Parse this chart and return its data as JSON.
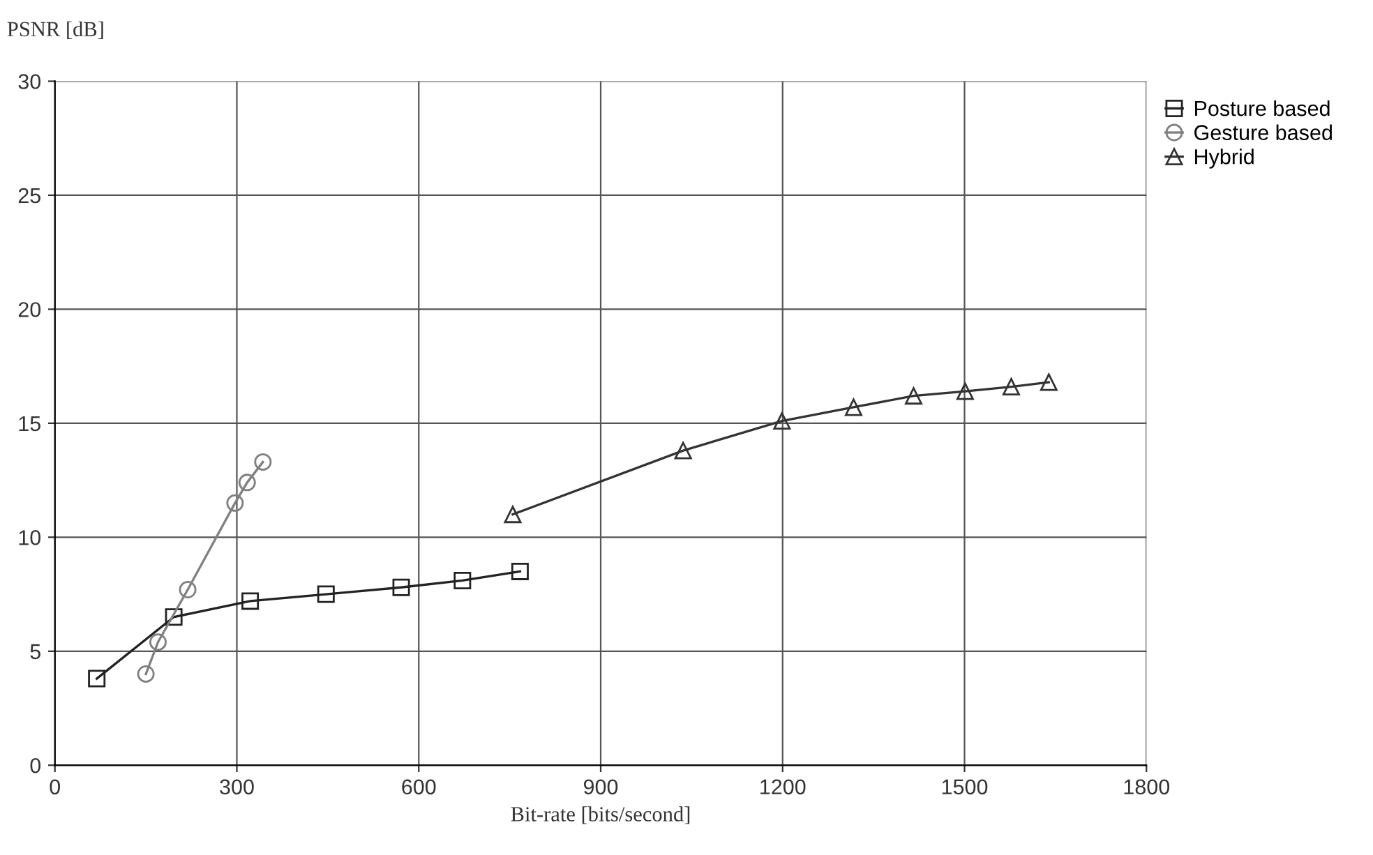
{
  "chart_data": {
    "type": "line",
    "xlabel": "Bit-rate [bits/second]",
    "ylabel": "PSNR [dB]",
    "xlim": [
      0,
      1800
    ],
    "xticks": [
      0,
      300,
      600,
      900,
      1200,
      1500,
      1800
    ],
    "ylim": [
      0,
      30
    ],
    "yticks": [
      0,
      5,
      10,
      15,
      20,
      25,
      30
    ],
    "grid": true,
    "legend": "top right",
    "line_style": "solid",
    "series": [
      {
        "name": "Posture based",
        "color": "#222222",
        "marker": "square",
        "x": [
          69,
          196,
          322,
          447,
          571,
          672,
          767
        ],
        "values": [
          3.8,
          6.5,
          7.2,
          7.5,
          7.8,
          8.1,
          8.5
        ]
      },
      {
        "name": "Gesture based",
        "color": "#808080",
        "marker": "circle",
        "x": [
          150,
          170,
          219,
          297,
          317,
          343
        ],
        "values": [
          4.0,
          5.4,
          7.7,
          11.5,
          12.4,
          13.3
        ]
      },
      {
        "name": "Hybrid",
        "color": "#333333",
        "marker": "triangle",
        "x": [
          755,
          1036,
          1199,
          1317,
          1416,
          1501,
          1577,
          1639
        ],
        "values": [
          11.0,
          13.8,
          15.1,
          15.7,
          16.2,
          16.4,
          16.6,
          16.8
        ]
      }
    ]
  }
}
